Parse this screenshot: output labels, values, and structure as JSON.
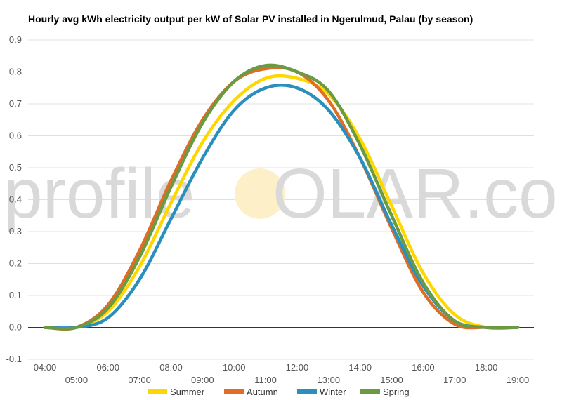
{
  "title": "Hourly avg kWh electricity output per kW of Solar PV installed in Ngerulmud, Palau (by season)",
  "watermark": {
    "left": "profile",
    "sun": "S",
    "right": "OLAR.com"
  },
  "chart_data": {
    "type": "line",
    "title": "Hourly avg kWh electricity output per kW of Solar PV installed in Ngerulmud, Palau (by season)",
    "ylim": [
      -0.1,
      0.9
    ],
    "yticks": [
      -0.1,
      0.0,
      0.1,
      0.2,
      0.3,
      0.4,
      0.5,
      0.6,
      0.7,
      0.8,
      0.9
    ],
    "ytick_labels": [
      "-0.1",
      "0.0",
      "0.1",
      "0.2",
      "0.3",
      "0.4",
      "0.5",
      "0.6",
      "0.7",
      "0.8",
      "0.9"
    ],
    "xlim": [
      4,
      19
    ],
    "x_categories": [
      "04:00",
      "05:00",
      "06:00",
      "07:00",
      "08:00",
      "09:00",
      "10:00",
      "11:00",
      "12:00",
      "13:00",
      "14:00",
      "15:00",
      "16:00",
      "17:00",
      "18:00",
      "19:00"
    ],
    "grid": true,
    "legend": "bottom",
    "x": [
      4,
      5,
      6,
      7,
      8,
      9,
      10,
      11,
      12,
      13,
      14,
      15,
      16,
      17,
      18,
      19
    ],
    "series": [
      {
        "name": "Summer",
        "color": "#ffd700",
        "values": [
          0.0,
          0.0,
          0.05,
          0.19,
          0.39,
          0.58,
          0.71,
          0.78,
          0.78,
          0.73,
          0.59,
          0.38,
          0.17,
          0.04,
          0.0,
          0.0
        ]
      },
      {
        "name": "Autumn",
        "color": "#e06c26",
        "values": [
          0.0,
          0.0,
          0.07,
          0.24,
          0.46,
          0.65,
          0.77,
          0.81,
          0.8,
          0.71,
          0.53,
          0.31,
          0.11,
          0.01,
          0.0,
          0.0
        ]
      },
      {
        "name": "Winter",
        "color": "#2a8fbd",
        "values": [
          0.0,
          0.0,
          0.03,
          0.15,
          0.34,
          0.53,
          0.68,
          0.75,
          0.75,
          0.68,
          0.53,
          0.32,
          0.13,
          0.02,
          0.0,
          0.0
        ]
      },
      {
        "name": "Spring",
        "color": "#6a9b43",
        "values": [
          0.0,
          0.0,
          0.06,
          0.22,
          0.44,
          0.64,
          0.77,
          0.82,
          0.8,
          0.74,
          0.57,
          0.35,
          0.14,
          0.02,
          0.0,
          0.0
        ]
      }
    ]
  }
}
